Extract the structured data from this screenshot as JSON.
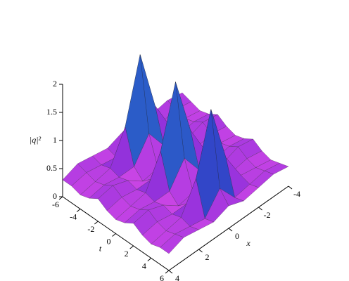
{
  "chart_data": {
    "type": "surface",
    "zlabel": "|q|²",
    "xlabel": "x",
    "tlabel": "t",
    "x": [
      -4,
      -3,
      -2,
      -1,
      0,
      1,
      2,
      3,
      4
    ],
    "t": [
      -6,
      -5,
      -4,
      -3,
      -2,
      -1,
      0,
      1,
      2,
      3,
      4,
      5,
      6
    ],
    "z": [
      [
        0.35,
        0.4,
        0.35,
        0.3,
        0.4,
        0.3,
        0.35,
        0.4,
        0.3
      ],
      [
        0.3,
        0.35,
        0.3,
        0.25,
        0.6,
        0.25,
        0.3,
        0.35,
        0.3
      ],
      [
        0.25,
        0.3,
        0.35,
        0.9,
        2.0,
        0.9,
        0.35,
        0.3,
        0.25
      ],
      [
        0.3,
        0.35,
        0.3,
        0.3,
        0.7,
        0.3,
        0.3,
        0.35,
        0.3
      ],
      [
        0.4,
        0.45,
        0.35,
        0.15,
        0.2,
        0.15,
        0.35,
        0.45,
        0.4
      ],
      [
        0.3,
        0.35,
        0.3,
        0.3,
        0.7,
        0.3,
        0.3,
        0.35,
        0.3
      ],
      [
        0.25,
        0.3,
        0.35,
        0.9,
        1.95,
        0.9,
        0.35,
        0.3,
        0.25
      ],
      [
        0.3,
        0.35,
        0.3,
        0.3,
        0.7,
        0.3,
        0.3,
        0.35,
        0.3
      ],
      [
        0.4,
        0.45,
        0.35,
        0.15,
        0.2,
        0.15,
        0.35,
        0.45,
        0.4
      ],
      [
        0.3,
        0.35,
        0.3,
        0.3,
        0.7,
        0.3,
        0.3,
        0.35,
        0.3
      ],
      [
        0.25,
        0.3,
        0.35,
        0.85,
        1.9,
        0.85,
        0.35,
        0.3,
        0.25
      ],
      [
        0.3,
        0.35,
        0.3,
        0.25,
        0.6,
        0.25,
        0.3,
        0.35,
        0.3
      ],
      [
        0.35,
        0.4,
        0.35,
        0.3,
        0.4,
        0.3,
        0.35,
        0.4,
        0.3
      ]
    ],
    "xlim": [
      -4,
      4
    ],
    "tlim": [
      -6,
      6
    ],
    "zlim": [
      0,
      2
    ],
    "xticks": [
      -4,
      -2,
      0,
      2,
      4
    ],
    "tticks": [
      -6,
      -4,
      -2,
      0,
      2,
      4,
      6
    ],
    "zticks": [
      0,
      0.5,
      1,
      1.5,
      2
    ]
  }
}
